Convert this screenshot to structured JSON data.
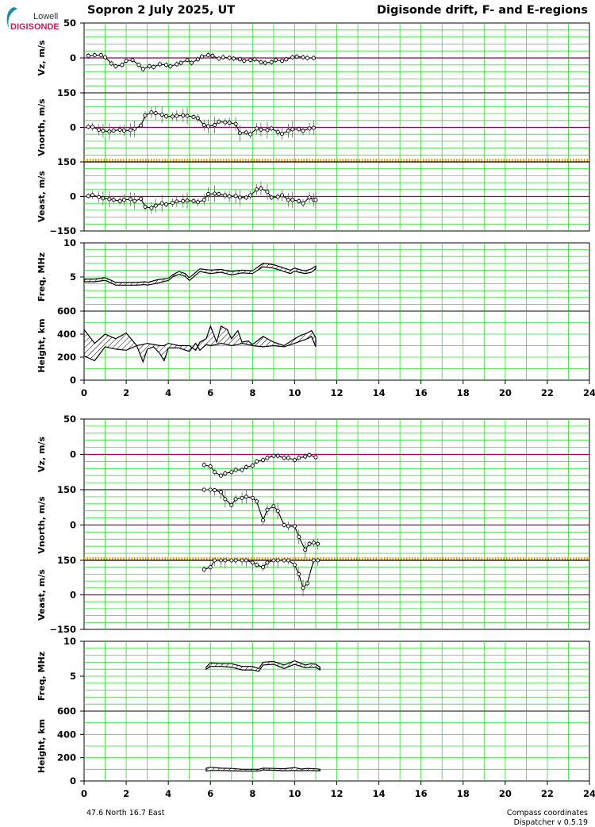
{
  "header": {
    "title_left": "Sopron  2 July 2025, UT",
    "title_right": "Digisonde drift, F- and E-regions"
  },
  "logo": {
    "top_text": "Lowell",
    "bottom_text": "DIGISONDE"
  },
  "footer": {
    "location": "47.6 North   16.7 East",
    "coordinates": "Compass coordinates",
    "version": "Dispatcher v 0.5.19"
  },
  "colors": {
    "grid": "#33dd33",
    "zero_line": "#990055",
    "band_line": "#ee9900",
    "curve": "#000000",
    "error_bar": "#666666",
    "logo_accent": "#1e8aa8",
    "logo_text": "#c21f5a"
  },
  "chart_data": [
    {
      "type": "line",
      "region": "F-region",
      "x_ticks": [
        "0",
        "2",
        "4",
        "6",
        "8",
        "10",
        "12",
        "14",
        "16",
        "18",
        "20",
        "22",
        "24"
      ],
      "xlim": [
        0,
        24
      ],
      "panels": [
        {
          "key": "vz",
          "ylabel": "Vz, m/s",
          "ylim": [
            -50,
            50
          ],
          "tick_labels": [
            "50",
            "0"
          ],
          "zero_line": true,
          "markers": true,
          "error_bars": true,
          "x": [
            0.2,
            0.5,
            0.8,
            1.0,
            1.3,
            1.5,
            1.8,
            2.0,
            2.3,
            2.6,
            2.8,
            3.1,
            3.3,
            3.6,
            3.9,
            4.1,
            4.4,
            4.6,
            4.9,
            5.1,
            5.4,
            5.6,
            5.9,
            6.1,
            6.4,
            6.6,
            6.9,
            7.1,
            7.4,
            7.6,
            7.9,
            8.1,
            8.4,
            8.6,
            8.9,
            9.1,
            9.4,
            9.6,
            9.9,
            10.1,
            10.4,
            10.6,
            10.9
          ],
          "y": [
            3,
            4,
            4,
            1,
            -8,
            -12,
            -10,
            -4,
            -3,
            -10,
            -16,
            -12,
            -13,
            -9,
            -10,
            -12,
            -9,
            -7,
            -3,
            -7,
            -2,
            2,
            4,
            3,
            -1,
            1,
            0,
            -1,
            -2,
            -4,
            -3,
            -2,
            -6,
            -7,
            -6,
            -3,
            -4,
            -2,
            1,
            2,
            1,
            0,
            0
          ]
        },
        {
          "key": "vnorth",
          "ylabel": "Vnorth, m/s",
          "ylim": [
            -150,
            150
          ],
          "tick_labels": [
            "150",
            "0"
          ],
          "zero_line": true,
          "markers": true,
          "error_bars": true,
          "x": [
            0.2,
            0.4,
            0.7,
            0.9,
            1.2,
            1.4,
            1.7,
            1.9,
            2.2,
            2.4,
            2.7,
            2.9,
            3.2,
            3.4,
            3.7,
            3.9,
            4.2,
            4.4,
            4.7,
            4.9,
            5.2,
            5.4,
            5.7,
            5.9,
            6.2,
            6.4,
            6.7,
            6.9,
            7.2,
            7.4,
            7.7,
            7.9,
            8.2,
            8.4,
            8.7,
            8.9,
            9.2,
            9.4,
            9.7,
            9.9,
            10.2,
            10.4,
            10.7,
            10.9
          ],
          "y": [
            3,
            2,
            -10,
            -15,
            -18,
            -14,
            -10,
            -14,
            -12,
            -6,
            8,
            52,
            65,
            62,
            55,
            48,
            47,
            50,
            52,
            50,
            45,
            40,
            10,
            5,
            10,
            25,
            22,
            20,
            15,
            -25,
            -22,
            -30,
            -5,
            -10,
            -12,
            -5,
            -20,
            -28,
            -15,
            -8,
            -8,
            -15,
            -5,
            -2
          ]
        },
        {
          "key": "veast",
          "ylabel": "Veast, m/s",
          "ylim": [
            -150,
            150
          ],
          "tick_labels": [
            "150",
            "0",
            "−150"
          ],
          "zero_line": true,
          "markers": true,
          "error_bars": true,
          "x": [
            0.2,
            0.4,
            0.7,
            0.9,
            1.2,
            1.4,
            1.7,
            1.9,
            2.2,
            2.4,
            2.7,
            2.9,
            3.2,
            3.4,
            3.7,
            3.9,
            4.2,
            4.4,
            4.7,
            4.9,
            5.2,
            5.4,
            5.7,
            5.9,
            6.2,
            6.4,
            6.7,
            6.9,
            7.2,
            7.4,
            7.7,
            7.9,
            8.2,
            8.4,
            8.7,
            8.9,
            9.2,
            9.4,
            9.7,
            9.9,
            10.2,
            10.4,
            10.7,
            10.9,
            11.0
          ],
          "y": [
            2,
            6,
            -3,
            -8,
            -12,
            -15,
            -20,
            -15,
            -12,
            -20,
            -10,
            -45,
            -50,
            -40,
            -30,
            -35,
            -28,
            -22,
            -20,
            -18,
            -20,
            -25,
            -15,
            10,
            12,
            10,
            5,
            0,
            2,
            -5,
            -5,
            5,
            30,
            35,
            20,
            -5,
            -2,
            5,
            -15,
            -15,
            -20,
            -30,
            -5,
            -15,
            -15
          ]
        },
        {
          "key": "freq",
          "ylabel": "Freq, MHz",
          "ylim": [
            0,
            10
          ],
          "tick_labels": [
            "10",
            "5"
          ],
          "style": "hatched_band",
          "x": [
            0.0,
            0.5,
            1.0,
            1.3,
            1.5,
            2.0,
            2.5,
            2.9,
            3.0,
            3.5,
            4.0,
            4.2,
            4.5,
            4.8,
            5.0,
            5.5,
            6.0,
            6.5,
            7.0,
            7.5,
            8.0,
            8.5,
            9.0,
            9.5,
            9.8,
            10.0,
            10.2,
            10.5,
            10.8,
            11.0
          ],
          "y_low": [
            4.3,
            4.3,
            4.5,
            4.1,
            3.8,
            3.8,
            3.8,
            3.9,
            3.8,
            4.1,
            4.5,
            5.0,
            5.4,
            5.1,
            4.5,
            5.8,
            5.5,
            5.7,
            5.3,
            5.6,
            5.5,
            6.5,
            6.3,
            5.8,
            5.5,
            5.9,
            5.7,
            5.5,
            5.7,
            6.2
          ],
          "y_high": [
            4.7,
            4.7,
            4.9,
            4.5,
            4.2,
            4.2,
            4.2,
            4.3,
            4.2,
            4.6,
            4.8,
            5.3,
            5.8,
            5.5,
            4.9,
            6.2,
            6.0,
            6.1,
            5.8,
            6.0,
            5.9,
            7.0,
            6.8,
            6.3,
            6.0,
            6.3,
            6.1,
            5.9,
            6.2,
            6.6
          ]
        },
        {
          "key": "height",
          "ylabel": "Height, km",
          "ylim": [
            0,
            600
          ],
          "tick_labels": [
            "600",
            "400",
            "200",
            "0"
          ],
          "style": "hatched_band",
          "x": [
            0.0,
            0.5,
            1.0,
            1.5,
            2.0,
            2.5,
            2.8,
            3.0,
            3.3,
            3.6,
            3.8,
            4.0,
            4.5,
            5.0,
            5.3,
            5.5,
            5.8,
            6.0,
            6.3,
            6.5,
            6.8,
            7.0,
            7.3,
            7.5,
            7.8,
            8.0,
            8.5,
            9.0,
            9.5,
            10.0,
            10.3,
            10.6,
            10.8,
            11.0
          ],
          "y_low": [
            210,
            170,
            290,
            270,
            260,
            300,
            160,
            270,
            290,
            230,
            170,
            280,
            280,
            250,
            320,
            260,
            310,
            300,
            310,
            320,
            310,
            300,
            310,
            320,
            310,
            300,
            290,
            300,
            290,
            320,
            340,
            360,
            380,
            290
          ],
          "y_high": [
            440,
            320,
            400,
            360,
            410,
            300,
            310,
            320,
            310,
            300,
            300,
            320,
            300,
            300,
            260,
            330,
            360,
            470,
            330,
            470,
            440,
            360,
            430,
            330,
            340,
            310,
            380,
            330,
            300,
            360,
            390,
            410,
            430,
            370
          ]
        }
      ]
    },
    {
      "type": "line",
      "region": "E-region",
      "x_ticks": [
        "0",
        "2",
        "4",
        "6",
        "8",
        "10",
        "12",
        "14",
        "16",
        "18",
        "20",
        "22",
        "24"
      ],
      "xlim": [
        0,
        24
      ],
      "panels": [
        {
          "key": "vz",
          "ylabel": "Vz, m/s",
          "ylim": [
            -50,
            50
          ],
          "tick_labels": [
            "50",
            "0"
          ],
          "zero_line": true,
          "markers": true,
          "error_bars": true,
          "x": [
            5.7,
            6.0,
            6.2,
            6.5,
            6.7,
            7.0,
            7.2,
            7.5,
            7.7,
            8.0,
            8.2,
            8.5,
            8.7,
            9.0,
            9.2,
            9.5,
            9.7,
            10.0,
            10.2,
            10.5,
            10.7,
            11.0
          ],
          "y": [
            -15,
            -17,
            -25,
            -30,
            -27,
            -25,
            -22,
            -22,
            -18,
            -16,
            -10,
            -8,
            -5,
            -2,
            -2,
            -5,
            -5,
            -8,
            -5,
            -3,
            -1,
            -4
          ]
        },
        {
          "key": "vnorth",
          "ylabel": "Vnorth, m/s",
          "ylim": [
            -150,
            150
          ],
          "tick_labels": [
            "150",
            "0"
          ],
          "zero_line": true,
          "markers": true,
          "error_bars": true,
          "x": [
            5.7,
            6.0,
            6.2,
            6.5,
            6.7,
            7.0,
            7.2,
            7.5,
            7.7,
            8.0,
            8.2,
            8.5,
            8.7,
            9.0,
            9.2,
            9.5,
            9.7,
            10.0,
            10.2,
            10.5,
            10.7,
            10.9,
            11.1
          ],
          "y": [
            150,
            150,
            148,
            140,
            110,
            85,
            110,
            115,
            120,
            115,
            100,
            20,
            65,
            80,
            60,
            0,
            -5,
            -5,
            -50,
            -105,
            -80,
            -75,
            -80
          ]
        },
        {
          "key": "veast",
          "ylabel": "Veast, m/s",
          "ylim": [
            -150,
            150
          ],
          "tick_labels": [
            "150",
            "0",
            "−150"
          ],
          "zero_line": true,
          "markers": true,
          "error_bars": true,
          "x": [
            5.7,
            6.0,
            6.2,
            6.5,
            6.7,
            7.0,
            7.2,
            7.5,
            7.7,
            8.0,
            8.2,
            8.5,
            8.7,
            9.0,
            9.2,
            9.5,
            9.7,
            10.0,
            10.2,
            10.4,
            10.6,
            10.9,
            11.1
          ],
          "y": [
            110,
            120,
            150,
            150,
            150,
            150,
            150,
            150,
            150,
            140,
            130,
            120,
            140,
            150,
            150,
            150,
            150,
            130,
            90,
            30,
            50,
            150,
            150
          ]
        },
        {
          "key": "freq",
          "ylabel": "Freq, MHz",
          "ylim": [
            0,
            10
          ],
          "tick_labels": [
            "10",
            "5"
          ],
          "style": "hatched_band",
          "x": [
            5.8,
            6.0,
            6.5,
            7.0,
            7.5,
            8.0,
            8.3,
            8.5,
            9.0,
            9.5,
            10.0,
            10.5,
            10.8,
            11.0,
            11.2
          ],
          "y_low": [
            6.0,
            6.4,
            6.4,
            6.3,
            5.9,
            5.9,
            5.7,
            6.6,
            6.7,
            6.1,
            6.7,
            6.2,
            6.3,
            6.3,
            5.9
          ],
          "y_high": [
            6.3,
            6.9,
            6.8,
            6.8,
            6.4,
            6.4,
            6.1,
            7.0,
            7.1,
            6.6,
            7.2,
            6.6,
            6.8,
            6.7,
            6.3
          ]
        },
        {
          "key": "height",
          "ylabel": "Height, km",
          "ylim": [
            0,
            600
          ],
          "tick_labels": [
            "600",
            "400",
            "200",
            "0"
          ],
          "style": "hatched_band",
          "x": [
            5.8,
            6.0,
            6.5,
            7.0,
            7.5,
            8.0,
            8.3,
            8.5,
            9.0,
            9.5,
            10.0,
            10.3,
            10.6,
            11.0,
            11.2
          ],
          "y_low": [
            85,
            90,
            90,
            88,
            85,
            85,
            85,
            95,
            92,
            88,
            90,
            88,
            90,
            88,
            88
          ],
          "y_high": [
            110,
            118,
            110,
            108,
            100,
            100,
            100,
            110,
            108,
            105,
            115,
            102,
            108,
            104,
            100
          ]
        }
      ]
    }
  ]
}
